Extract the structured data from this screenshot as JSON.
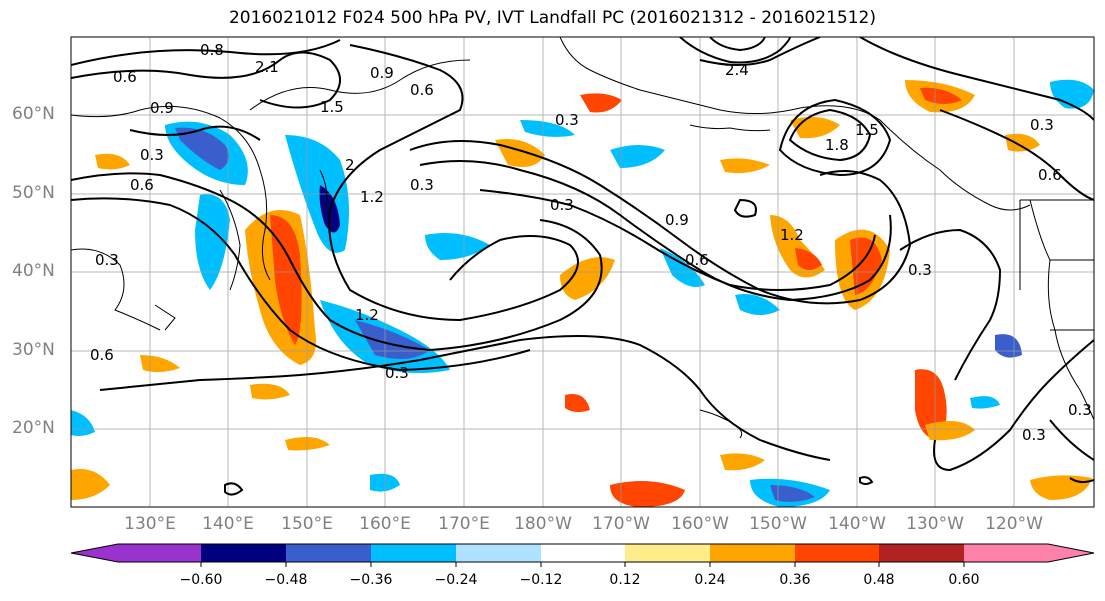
{
  "title": "2016021012 F024 500 hPa PV, IVT Landfall PC (2016021312 - 2016021512)",
  "lat_labels": [
    "60°N",
    "50°N",
    "40°N",
    "30°N",
    "20°N"
  ],
  "lon_labels": [
    "130°E",
    "140°E",
    "150°E",
    "160°E",
    "170°E",
    "180°W",
    "170°W",
    "160°W",
    "150°W",
    "140°W",
    "130°W",
    "120°W"
  ],
  "colorbar": {
    "ticks": [
      "−0.60",
      "−0.48",
      "−0.36",
      "−0.24",
      "−0.12",
      "0.12",
      "0.24",
      "0.36",
      "0.48",
      "0.60"
    ],
    "colors": [
      "#9a32cd",
      "#000080",
      "#3a5fcd",
      "#00bfff",
      "#b0e2ff",
      "#ffffff",
      "#ffec8b",
      "#ffa500",
      "#ff4500",
      "#b22222",
      "#ff82ab"
    ]
  },
  "contour_labels": [
    "0.6",
    "0.9",
    "0.3",
    "0.8",
    "2.1",
    "1.5",
    "2",
    "0.9",
    "0.6",
    "0.3",
    "0.3",
    "0.3",
    "0.9",
    "0.6",
    "1.2",
    "1.2",
    "0.3",
    "0.6",
    "0.3",
    "0.6",
    "0.3",
    "1.8",
    "1.5",
    "0.3",
    "0.6",
    "0.3",
    "0.3",
    "1.2",
    "2.4"
  ]
}
